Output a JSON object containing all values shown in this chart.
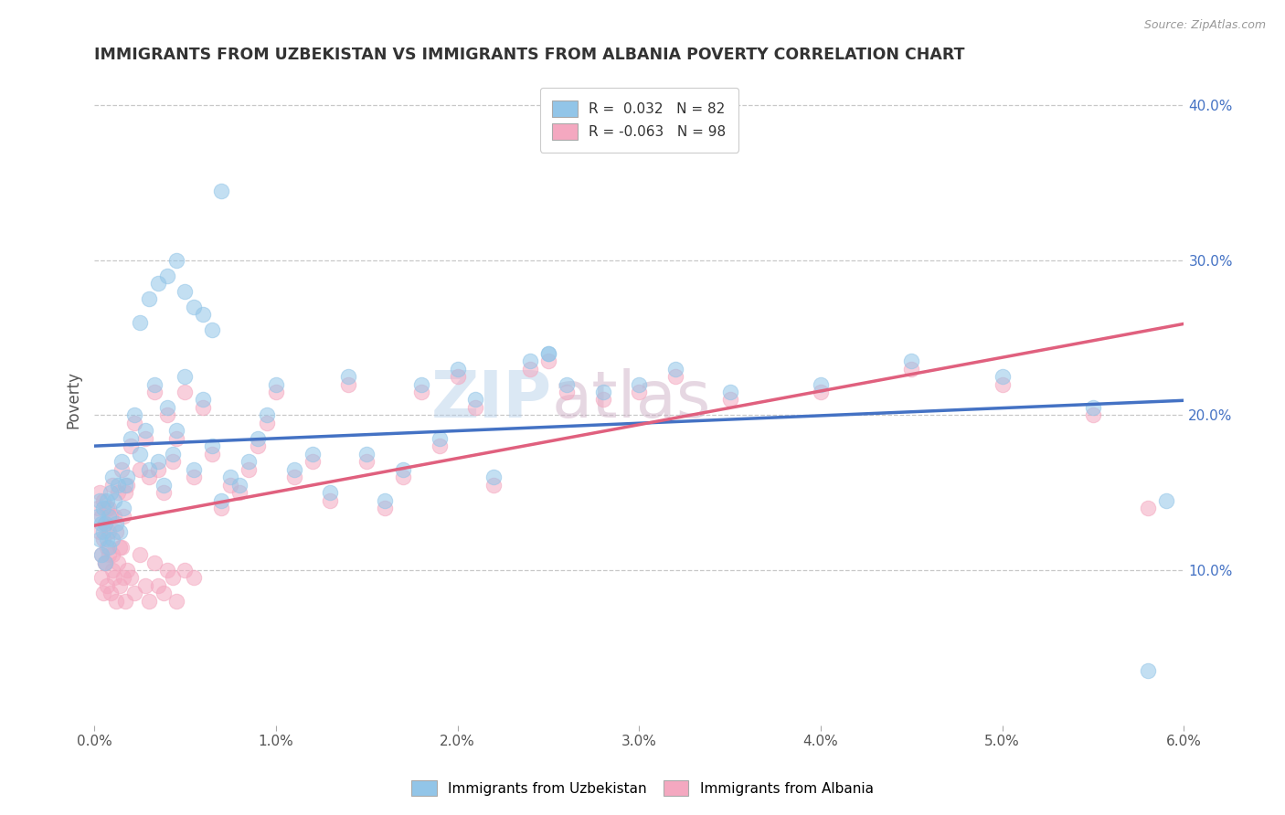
{
  "title": "IMMIGRANTS FROM UZBEKISTAN VS IMMIGRANTS FROM ALBANIA POVERTY CORRELATION CHART",
  "source": "Source: ZipAtlas.com",
  "ylabel": "Poverty",
  "xlim": [
    0.0,
    6.0
  ],
  "ylim": [
    0.0,
    42.0
  ],
  "yticks_right": [
    10.0,
    20.0,
    30.0,
    40.0
  ],
  "xticks": [
    0.0,
    1.0,
    2.0,
    3.0,
    4.0,
    5.0,
    6.0
  ],
  "legend1_label": "R =  0.032   N = 82",
  "legend2_label": "R = -0.063   N = 98",
  "color_uzbekistan": "#92c5e8",
  "color_albania": "#f4a8c0",
  "trend_color_uzbekistan": "#4472c4",
  "trend_color_albania": "#e0607e",
  "background_color": "#ffffff",
  "watermark_zip": "ZIP",
  "watermark_atlas": "atlas",
  "uzbekistan_x": [
    0.02,
    0.03,
    0.03,
    0.04,
    0.04,
    0.05,
    0.05,
    0.06,
    0.06,
    0.07,
    0.07,
    0.08,
    0.08,
    0.09,
    0.1,
    0.1,
    0.11,
    0.12,
    0.13,
    0.14,
    0.15,
    0.16,
    0.17,
    0.18,
    0.2,
    0.22,
    0.25,
    0.28,
    0.3,
    0.33,
    0.35,
    0.38,
    0.4,
    0.43,
    0.45,
    0.5,
    0.55,
    0.6,
    0.65,
    0.7,
    0.75,
    0.8,
    0.85,
    0.9,
    0.95,
    1.0,
    1.1,
    1.2,
    1.3,
    1.4,
    1.5,
    1.6,
    1.7,
    1.8,
    1.9,
    2.0,
    2.1,
    2.2,
    2.4,
    2.5,
    2.6,
    2.8,
    3.0,
    3.2,
    3.5,
    4.0,
    4.5,
    5.0,
    5.5,
    5.9,
    0.25,
    0.3,
    0.35,
    0.4,
    0.45,
    0.5,
    0.55,
    0.6,
    0.65,
    0.7,
    2.5,
    5.8
  ],
  "uzbekistan_y": [
    13.5,
    12.0,
    14.5,
    11.0,
    13.0,
    12.5,
    14.0,
    10.5,
    13.0,
    14.5,
    12.0,
    11.5,
    13.5,
    15.0,
    12.0,
    16.0,
    14.5,
    13.0,
    15.5,
    12.5,
    17.0,
    14.0,
    15.5,
    16.0,
    18.5,
    20.0,
    17.5,
    19.0,
    16.5,
    22.0,
    17.0,
    15.5,
    20.5,
    17.5,
    19.0,
    22.5,
    16.5,
    21.0,
    18.0,
    14.5,
    16.0,
    15.5,
    17.0,
    18.5,
    20.0,
    22.0,
    16.5,
    17.5,
    15.0,
    22.5,
    17.5,
    14.5,
    16.5,
    22.0,
    18.5,
    23.0,
    21.0,
    16.0,
    23.5,
    24.0,
    22.0,
    21.5,
    22.0,
    23.0,
    21.5,
    22.0,
    23.5,
    22.5,
    20.5,
    14.5,
    26.0,
    27.5,
    28.5,
    29.0,
    30.0,
    28.0,
    27.0,
    26.5,
    25.5,
    34.5,
    24.0,
    3.5
  ],
  "albania_x": [
    0.02,
    0.03,
    0.03,
    0.04,
    0.04,
    0.05,
    0.05,
    0.06,
    0.06,
    0.07,
    0.07,
    0.08,
    0.08,
    0.09,
    0.1,
    0.1,
    0.11,
    0.12,
    0.13,
    0.14,
    0.15,
    0.16,
    0.17,
    0.18,
    0.2,
    0.22,
    0.25,
    0.28,
    0.3,
    0.33,
    0.35,
    0.38,
    0.4,
    0.43,
    0.45,
    0.5,
    0.55,
    0.6,
    0.65,
    0.7,
    0.75,
    0.8,
    0.85,
    0.9,
    0.95,
    1.0,
    1.1,
    1.2,
    1.3,
    1.4,
    1.5,
    1.6,
    1.7,
    1.8,
    1.9,
    2.0,
    2.1,
    2.2,
    2.4,
    2.5,
    2.6,
    2.8,
    3.0,
    3.2,
    3.5,
    4.0,
    4.5,
    5.0,
    5.5,
    5.8,
    0.04,
    0.05,
    0.06,
    0.07,
    0.08,
    0.09,
    0.1,
    0.11,
    0.12,
    0.13,
    0.14,
    0.15,
    0.16,
    0.17,
    0.18,
    0.2,
    0.22,
    0.25,
    0.28,
    0.3,
    0.33,
    0.35,
    0.38,
    0.4,
    0.43,
    0.45,
    0.5,
    0.55
  ],
  "albania_y": [
    14.0,
    12.5,
    15.0,
    11.0,
    13.5,
    12.0,
    14.5,
    10.5,
    13.0,
    14.0,
    11.5,
    12.5,
    14.0,
    13.5,
    11.0,
    15.5,
    13.5,
    12.5,
    15.0,
    11.5,
    16.5,
    13.5,
    15.0,
    15.5,
    18.0,
    19.5,
    16.5,
    18.5,
    16.0,
    21.5,
    16.5,
    15.0,
    20.0,
    17.0,
    18.5,
    21.5,
    16.0,
    20.5,
    17.5,
    14.0,
    15.5,
    15.0,
    16.5,
    18.0,
    19.5,
    21.5,
    16.0,
    17.0,
    14.5,
    22.0,
    17.0,
    14.0,
    16.0,
    21.5,
    18.0,
    22.5,
    20.5,
    15.5,
    23.0,
    23.5,
    21.5,
    21.0,
    21.5,
    22.5,
    21.0,
    21.5,
    23.0,
    22.0,
    20.0,
    14.0,
    9.5,
    8.5,
    10.5,
    9.0,
    11.0,
    8.5,
    10.0,
    9.5,
    8.0,
    10.5,
    9.0,
    11.5,
    9.5,
    8.0,
    10.0,
    9.5,
    8.5,
    11.0,
    9.0,
    8.0,
    10.5,
    9.0,
    8.5,
    10.0,
    9.5,
    8.0,
    10.0,
    9.5
  ]
}
